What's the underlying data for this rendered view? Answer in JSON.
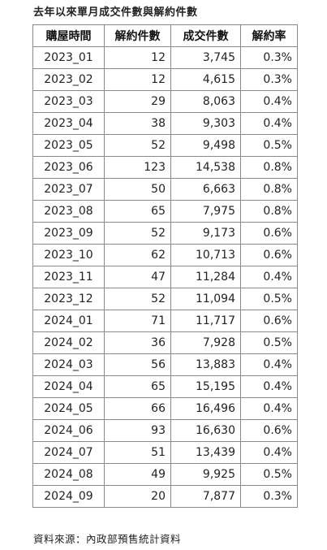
{
  "title": "去年以來單月成交件數與解約件數",
  "headers": [
    "購屋時間",
    "解約件數",
    "成交件數",
    "解約率"
  ],
  "rows": [
    {
      "period": "2023_01",
      "cancellations": "12",
      "transactions": "3,745",
      "rate": "0.3%"
    },
    {
      "period": "2023_02",
      "cancellations": "12",
      "transactions": "4,615",
      "rate": "0.3%"
    },
    {
      "period": "2023_03",
      "cancellations": "29",
      "transactions": "8,063",
      "rate": "0.4%"
    },
    {
      "period": "2023_04",
      "cancellations": "38",
      "transactions": "9,303",
      "rate": "0.4%"
    },
    {
      "period": "2023_05",
      "cancellations": "52",
      "transactions": "9,498",
      "rate": "0.5%"
    },
    {
      "period": "2023_06",
      "cancellations": "123",
      "transactions": "14,538",
      "rate": "0.8%"
    },
    {
      "period": "2023_07",
      "cancellations": "50",
      "transactions": "6,663",
      "rate": "0.8%"
    },
    {
      "period": "2023_08",
      "cancellations": "65",
      "transactions": "7,975",
      "rate": "0.8%"
    },
    {
      "period": "2023_09",
      "cancellations": "52",
      "transactions": "9,173",
      "rate": "0.6%"
    },
    {
      "period": "2023_10",
      "cancellations": "62",
      "transactions": "10,713",
      "rate": "0.6%"
    },
    {
      "period": "2023_11",
      "cancellations": "47",
      "transactions": "11,284",
      "rate": "0.4%"
    },
    {
      "period": "2023_12",
      "cancellations": "52",
      "transactions": "11,094",
      "rate": "0.5%"
    },
    {
      "period": "2024_01",
      "cancellations": "71",
      "transactions": "11,717",
      "rate": "0.6%"
    },
    {
      "period": "2024_02",
      "cancellations": "36",
      "transactions": "7,928",
      "rate": "0.5%"
    },
    {
      "period": "2024_03",
      "cancellations": "56",
      "transactions": "13,883",
      "rate": "0.4%"
    },
    {
      "period": "2024_04",
      "cancellations": "65",
      "transactions": "15,195",
      "rate": "0.4%"
    },
    {
      "period": "2024_05",
      "cancellations": "66",
      "transactions": "16,496",
      "rate": "0.4%"
    },
    {
      "period": "2024_06",
      "cancellations": "93",
      "transactions": "16,630",
      "rate": "0.6%"
    },
    {
      "period": "2024_07",
      "cancellations": "51",
      "transactions": "13,439",
      "rate": "0.4%"
    },
    {
      "period": "2024_08",
      "cancellations": "49",
      "transactions": "9,925",
      "rate": "0.5%"
    },
    {
      "period": "2024_09",
      "cancellations": "20",
      "transactions": "7,877",
      "rate": "0.3%"
    }
  ],
  "source": "資料來源：內政部預售統計資料"
}
